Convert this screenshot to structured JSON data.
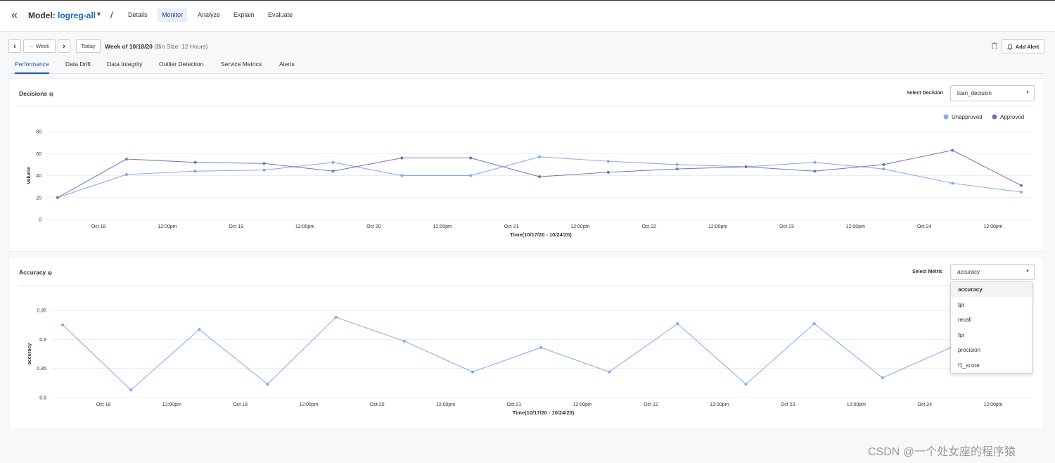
{
  "header": {
    "back_icon": "double-chevron-left-icon",
    "model_label": "Model:",
    "model_name": "logreg-all",
    "separator": "/",
    "nav": [
      "Details",
      "Monitor",
      "Analyze",
      "Explain",
      "Evaluate"
    ],
    "active_nav": "Monitor"
  },
  "toolbar": {
    "prev": "‹",
    "week_button": "Week",
    "next": "›",
    "today": "Today",
    "week_title": "Week of 10/18/20",
    "bin_size": "(Bin Size: 12 Hours)",
    "add_alert": "Add Alert"
  },
  "tabs": [
    "Performance",
    "Data Drift",
    "Data Integrity",
    "Outlier Detection",
    "Service Metrics",
    "Alerts"
  ],
  "active_tab": "Performance",
  "decisions": {
    "title": "Decisions",
    "select_label": "Select Decision",
    "select_value": "loan_decision"
  },
  "accuracy": {
    "title": "Accuracy",
    "select_label": "Select Metric",
    "select_value": "accuracy",
    "options": [
      "accuracy",
      "tpr",
      "recall",
      "fpr",
      "precision",
      "f1_score"
    ]
  },
  "chart_data": [
    {
      "type": "line",
      "ylabel": "Volume",
      "xlabel": "Time(10/17/20 - 10/24/20)",
      "x_ticks": [
        "Oct 18",
        "12:00pm",
        "Oct 19",
        "12:00pm",
        "Oct 20",
        "12:00pm",
        "Oct 21",
        "12:00pm",
        "Oct 22",
        "12:00pm",
        "Oct 23",
        "12:00pm",
        "Oct 24",
        "12:00pm"
      ],
      "ylim": [
        0,
        80
      ],
      "y_ticks": [
        0,
        20,
        40,
        60,
        80
      ],
      "legend_position": "top-right",
      "series": [
        {
          "name": "Unapproved",
          "color": "#7fa7f3",
          "values": [
            20,
            41,
            44,
            45,
            52,
            40,
            40,
            57,
            53,
            50,
            48,
            52,
            46,
            33,
            25
          ]
        },
        {
          "name": "Approved",
          "color": "#7272b8",
          "values": [
            20,
            55,
            52,
            51,
            44,
            56,
            56,
            39,
            43,
            46,
            48,
            44,
            50,
            63,
            31
          ]
        }
      ]
    },
    {
      "type": "line",
      "ylabel": "accuracy",
      "xlabel": "Time(10/17/20 - 10/24/20)",
      "x_ticks": [
        "Oct 18",
        "12:00pm",
        "Oct 19",
        "12:00pm",
        "Oct 20",
        "12:00pm",
        "Oct 21",
        "12:00pm",
        "Oct 22",
        "12:00pm",
        "Oct 23",
        "12:00pm",
        "Oct 24",
        "12:00pm"
      ],
      "ylim": [
        0.8,
        0.95
      ],
      "y_ticks": [
        "0.8",
        "0.85",
        "0.9",
        "0.95"
      ],
      "series": [
        {
          "color": "#7fa7f3",
          "values": [
            0.925,
            0.813,
            0.917,
            0.823,
            0.938,
            0.897,
            0.844,
            0.886,
            0.844,
            0.927,
            0.823,
            0.927,
            0.834,
            0.886
          ]
        }
      ]
    }
  ],
  "watermark": "CSDN @一个处女座的程序猿"
}
